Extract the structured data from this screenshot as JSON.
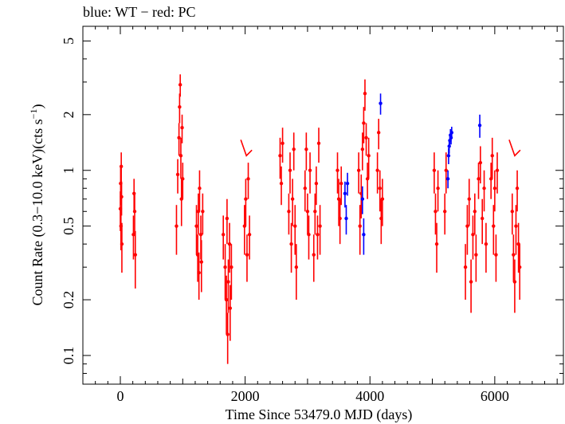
{
  "chart_data": {
    "type": "scatter",
    "title": "blue: WT − red: PC",
    "xlabel": "Time Since 53479.0 MJD (days)",
    "ylabel_main": "Count Rate (0.3−10.0 keV)(cts s",
    "ylabel_sup": "−1",
    "ylabel_close": ")",
    "xlim": [
      -600,
      7100
    ],
    "ylim": [
      0.07,
      6
    ],
    "yscale": "log",
    "grid": false,
    "x_ticks": [
      0,
      2000,
      4000,
      6000
    ],
    "x_tick_labels": [
      "0",
      "2000",
      "4000",
      "6000"
    ],
    "y_ticks": [
      0.1,
      0.2,
      0.5,
      1,
      2,
      5
    ],
    "y_tick_labels": [
      "0.1",
      "0.2",
      "0.5",
      "1",
      "2",
      "5"
    ],
    "colors": {
      "pc": "#ff0000",
      "wt": "#0000ff"
    },
    "series": [
      {
        "name": "PC",
        "color": "#ff0000",
        "points": [
          [
            0,
            0.62,
            0.15
          ],
          [
            5,
            0.85,
            0.2
          ],
          [
            10,
            0.5,
            0.13
          ],
          [
            15,
            1.05,
            0.2
          ],
          [
            20,
            0.72,
            0.15
          ],
          [
            25,
            0.4,
            0.12
          ],
          [
            210,
            0.45,
            0.12
          ],
          [
            220,
            0.75,
            0.15
          ],
          [
            230,
            0.6,
            0.15
          ],
          [
            240,
            0.35,
            0.12
          ],
          [
            900,
            0.5,
            0.15
          ],
          [
            920,
            0.95,
            0.2
          ],
          [
            940,
            1.5,
            0.3
          ],
          [
            950,
            2.2,
            0.4
          ],
          [
            960,
            2.9,
            0.4
          ],
          [
            970,
            1.2,
            0.3
          ],
          [
            980,
            0.7,
            0.2
          ],
          [
            990,
            1.7,
            0.3
          ],
          [
            1000,
            0.9,
            0.2
          ],
          [
            1220,
            0.5,
            0.15
          ],
          [
            1240,
            0.35,
            0.1
          ],
          [
            1250,
            0.6,
            0.15
          ],
          [
            1260,
            0.28,
            0.08
          ],
          [
            1270,
            0.8,
            0.2
          ],
          [
            1290,
            0.45,
            0.12
          ],
          [
            1300,
            0.32,
            0.1
          ],
          [
            1320,
            0.6,
            0.15
          ],
          [
            1650,
            0.45,
            0.12
          ],
          [
            1680,
            0.3,
            0.1
          ],
          [
            1700,
            0.2,
            0.07
          ],
          [
            1710,
            0.55,
            0.15
          ],
          [
            1720,
            0.13,
            0.04
          ],
          [
            1730,
            0.25,
            0.08
          ],
          [
            1750,
            0.4,
            0.12
          ],
          [
            1760,
            0.18,
            0.06
          ],
          [
            1780,
            0.3,
            0.1
          ],
          [
            1990,
            0.5,
            0.15
          ],
          [
            2010,
            0.7,
            0.2
          ],
          [
            2030,
            0.35,
            0.1
          ],
          [
            2050,
            0.9,
            0.2
          ],
          [
            2070,
            0.45,
            0.12
          ],
          [
            2560,
            1.2,
            0.3
          ],
          [
            2580,
            0.85,
            0.2
          ],
          [
            2600,
            1.4,
            0.3
          ],
          [
            2700,
            0.6,
            0.15
          ],
          [
            2720,
            1.0,
            0.25
          ],
          [
            2740,
            0.4,
            0.12
          ],
          [
            2760,
            0.7,
            0.2
          ],
          [
            2780,
            1.3,
            0.3
          ],
          [
            2800,
            0.5,
            0.15
          ],
          [
            2820,
            0.3,
            0.1
          ],
          [
            2960,
            0.8,
            0.2
          ],
          [
            2980,
            1.3,
            0.3
          ],
          [
            3000,
            0.6,
            0.15
          ],
          [
            3020,
            0.45,
            0.12
          ],
          [
            3040,
            1.0,
            0.25
          ],
          [
            3100,
            0.35,
            0.1
          ],
          [
            3120,
            0.6,
            0.15
          ],
          [
            3140,
            0.85,
            0.2
          ],
          [
            3160,
            0.45,
            0.12
          ],
          [
            3180,
            1.4,
            0.3
          ],
          [
            3200,
            0.5,
            0.15
          ],
          [
            3480,
            1.0,
            0.25
          ],
          [
            3500,
            0.7,
            0.2
          ],
          [
            3520,
            0.55,
            0.15
          ],
          [
            3540,
            0.85,
            0.2
          ],
          [
            3820,
            1.0,
            0.25
          ],
          [
            3840,
            0.5,
            0.15
          ],
          [
            3860,
            0.75,
            0.2
          ],
          [
            3880,
            1.3,
            0.3
          ],
          [
            3900,
            1.8,
            0.4
          ],
          [
            3920,
            2.6,
            0.5
          ],
          [
            3940,
            1.5,
            0.3
          ],
          [
            3960,
            0.9,
            0.2
          ],
          [
            3980,
            1.2,
            0.3
          ],
          [
            4120,
            1.0,
            0.25
          ],
          [
            4140,
            1.6,
            0.3
          ],
          [
            4160,
            0.8,
            0.2
          ],
          [
            4180,
            0.55,
            0.15
          ],
          [
            4200,
            0.7,
            0.2
          ],
          [
            5030,
            1.0,
            0.25
          ],
          [
            5050,
            0.6,
            0.15
          ],
          [
            5070,
            0.4,
            0.12
          ],
          [
            5090,
            0.8,
            0.2
          ],
          [
            5200,
            0.6,
            0.15
          ],
          [
            5220,
            1.0,
            0.25
          ],
          [
            5530,
            0.3,
            0.1
          ],
          [
            5560,
            0.5,
            0.15
          ],
          [
            5590,
            0.7,
            0.2
          ],
          [
            5620,
            0.25,
            0.08
          ],
          [
            5650,
            0.45,
            0.12
          ],
          [
            5680,
            0.6,
            0.15
          ],
          [
            5700,
            0.35,
            0.1
          ],
          [
            5740,
            0.9,
            0.2
          ],
          [
            5770,
            1.1,
            0.25
          ],
          [
            5800,
            0.55,
            0.15
          ],
          [
            5830,
            0.8,
            0.2
          ],
          [
            5860,
            0.4,
            0.12
          ],
          [
            5940,
            0.9,
            0.2
          ],
          [
            5960,
            1.2,
            0.3
          ],
          [
            5980,
            0.5,
            0.15
          ],
          [
            6000,
            0.8,
            0.2
          ],
          [
            6020,
            0.35,
            0.1
          ],
          [
            6040,
            1.0,
            0.25
          ],
          [
            6280,
            0.6,
            0.15
          ],
          [
            6300,
            0.35,
            0.1
          ],
          [
            6320,
            0.25,
            0.08
          ],
          [
            6340,
            0.5,
            0.15
          ],
          [
            6360,
            0.8,
            0.2
          ],
          [
            6380,
            0.4,
            0.12
          ],
          [
            6400,
            0.3,
            0.1
          ]
        ],
        "upper_limits": [
          [
            2020,
            1.2
          ],
          [
            6320,
            1.2
          ]
        ]
      },
      {
        "name": "WT",
        "color": "#0000ff",
        "points": [
          [
            3600,
            0.75,
            0.12
          ],
          [
            3620,
            0.55,
            0.1
          ],
          [
            3640,
            0.85,
            0.12
          ],
          [
            3880,
            0.7,
            0.12
          ],
          [
            3900,
            0.45,
            0.1
          ],
          [
            4170,
            2.3,
            0.3
          ],
          [
            5250,
            0.9,
            0.1
          ],
          [
            5260,
            1.2,
            0.12
          ],
          [
            5270,
            1.35,
            0.12
          ],
          [
            5280,
            1.45,
            0.12
          ],
          [
            5290,
            1.55,
            0.12
          ],
          [
            5300,
            1.5,
            0.12
          ],
          [
            5310,
            1.6,
            0.12
          ],
          [
            5760,
            1.75,
            0.25
          ]
        ]
      }
    ]
  }
}
